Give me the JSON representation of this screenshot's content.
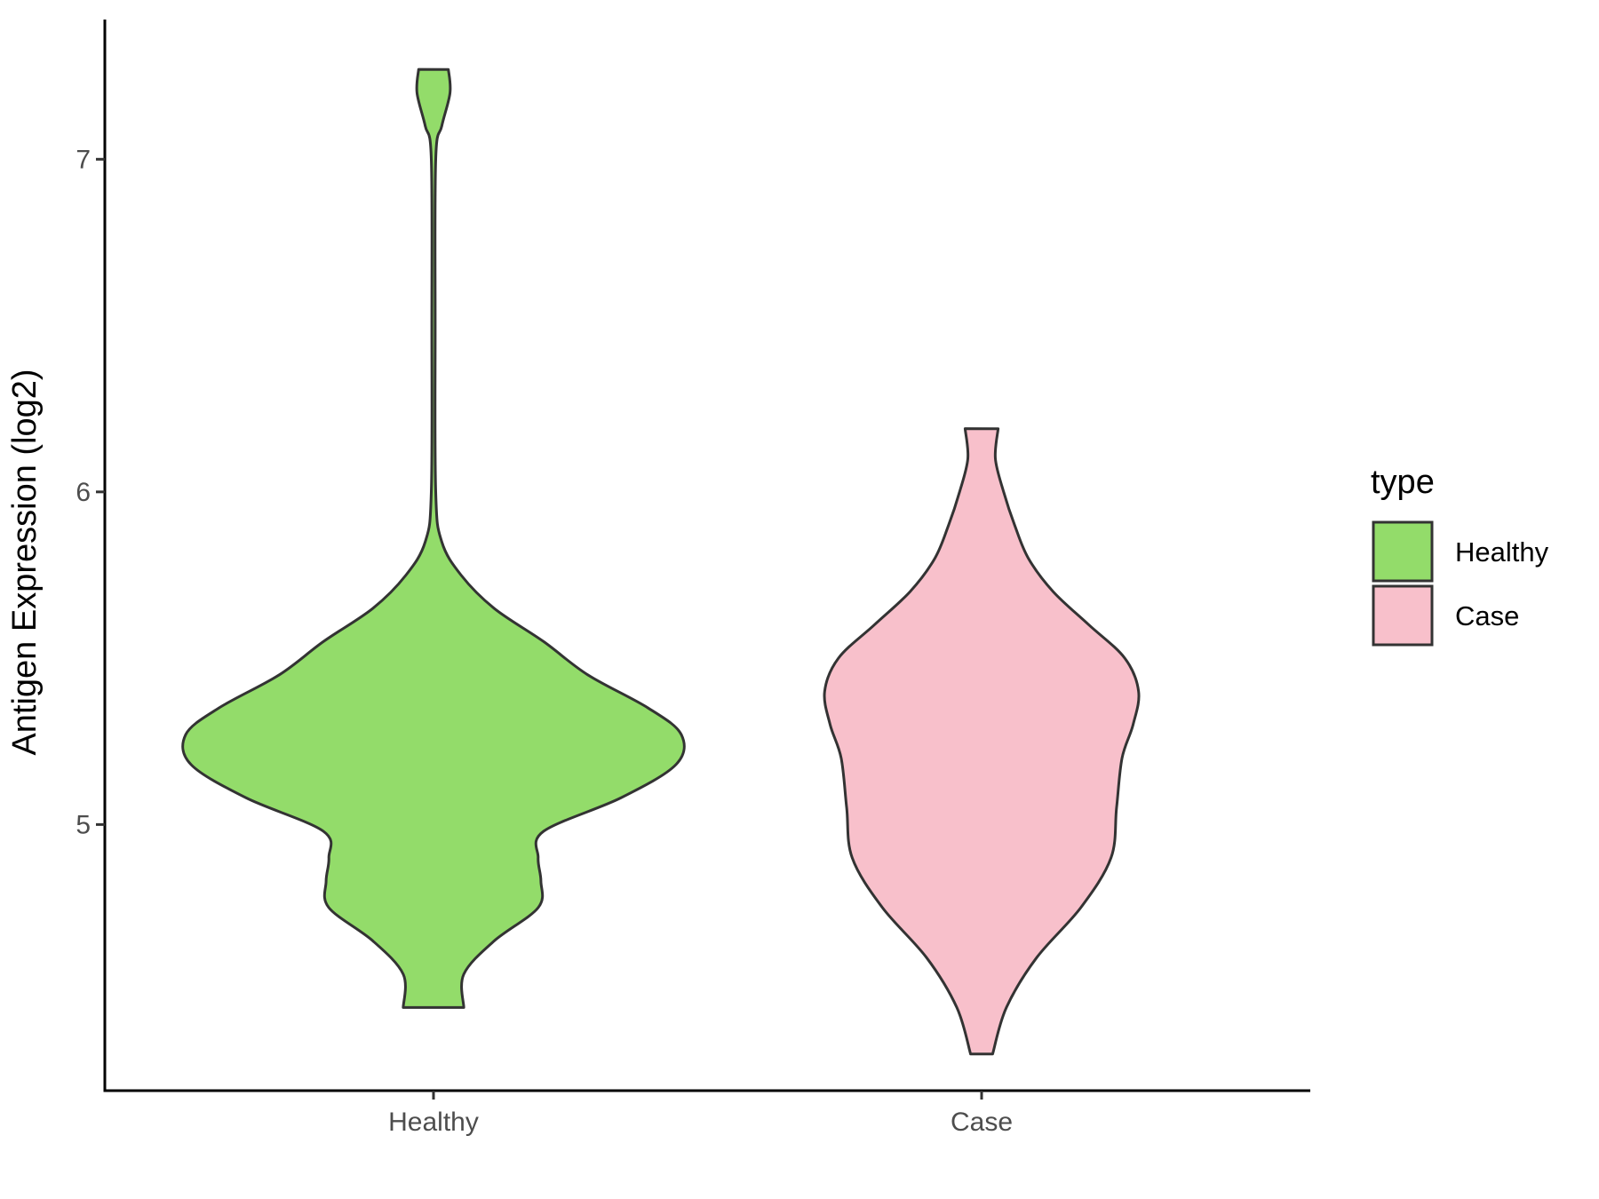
{
  "chart_data": {
    "type": "violin",
    "title": "",
    "xlabel": "",
    "ylabel": "Antigen Expression (log2)",
    "categories": [
      "Healthy",
      "Case"
    ],
    "ylim": [
      4.2,
      7.42
    ],
    "yticks": [
      5,
      6,
      7
    ],
    "grid": false,
    "legend": {
      "title": "type",
      "placement": "right",
      "entries": [
        {
          "label": "Healthy",
          "color": "#93dc6a"
        },
        {
          "label": "Case",
          "color": "#f8c0cb"
        }
      ]
    },
    "series": [
      {
        "category": "Healthy",
        "color": "#93dc6a",
        "min": 4.45,
        "max": 7.27,
        "density": [
          [
            4.45,
            0.055
          ],
          [
            4.55,
            0.055
          ],
          [
            4.65,
            0.11
          ],
          [
            4.75,
            0.19
          ],
          [
            4.83,
            0.195
          ],
          [
            4.9,
            0.19
          ],
          [
            4.98,
            0.2
          ],
          [
            5.08,
            0.34
          ],
          [
            5.18,
            0.44
          ],
          [
            5.27,
            0.45
          ],
          [
            5.35,
            0.39
          ],
          [
            5.45,
            0.28
          ],
          [
            5.55,
            0.2
          ],
          [
            5.65,
            0.11
          ],
          [
            5.75,
            0.05
          ],
          [
            5.85,
            0.015
          ],
          [
            6.0,
            0.004
          ],
          [
            6.5,
            0.003
          ],
          [
            7.0,
            0.004
          ],
          [
            7.1,
            0.015
          ],
          [
            7.2,
            0.03
          ],
          [
            7.27,
            0.027
          ]
        ]
      },
      {
        "category": "Case",
        "color": "#f8c0cb",
        "min": 4.31,
        "max": 6.19,
        "density": [
          [
            4.31,
            0.02
          ],
          [
            4.45,
            0.045
          ],
          [
            4.6,
            0.1
          ],
          [
            4.75,
            0.18
          ],
          [
            4.9,
            0.235
          ],
          [
            5.05,
            0.245
          ],
          [
            5.2,
            0.255
          ],
          [
            5.3,
            0.275
          ],
          [
            5.4,
            0.285
          ],
          [
            5.5,
            0.26
          ],
          [
            5.6,
            0.195
          ],
          [
            5.7,
            0.13
          ],
          [
            5.8,
            0.085
          ],
          [
            5.9,
            0.06
          ],
          [
            6.0,
            0.04
          ],
          [
            6.1,
            0.025
          ],
          [
            6.19,
            0.03
          ]
        ]
      }
    ]
  }
}
